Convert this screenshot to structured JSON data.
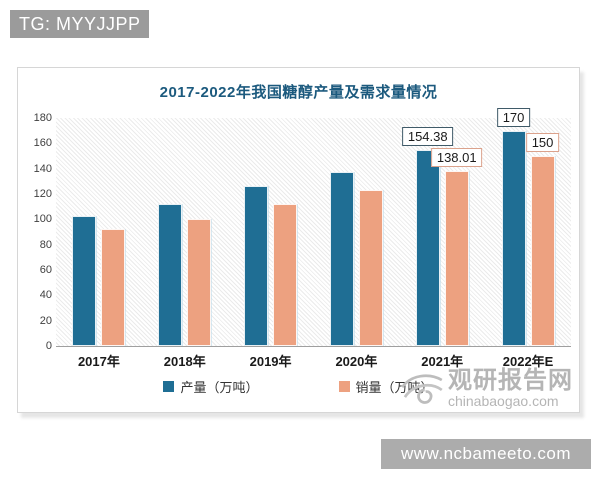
{
  "badge": {
    "text": "TG: MYYJJPP"
  },
  "watermark": {
    "site_name": "观研报告网",
    "site_url": "chinabaogao.com"
  },
  "footer": {
    "url_text": "www.ncbameeto.com"
  },
  "colors": {
    "production_bar": "#1f6e94",
    "sales_bar": "#eda180",
    "title_text": "#1c5a7e",
    "badge_background": "#9b9b9b",
    "footer_background": "#acacac",
    "watermark_gray": "#b5b5b5"
  },
  "chart_data": {
    "type": "bar",
    "title": "2017-2022年我国糖醇产量及需求量情况",
    "categories": [
      "2017年",
      "2018年",
      "2019年",
      "2020年",
      "2021年",
      "2022年E"
    ],
    "series": [
      {
        "name": "产量（万吨）",
        "color": "#1f6e94",
        "label_border": "#3f5a68",
        "values": [
          103,
          112,
          126,
          137,
          154.38,
          170
        ],
        "data_labels": [
          null,
          null,
          null,
          null,
          "154.38",
          "170"
        ]
      },
      {
        "name": "销量（万吨）",
        "color": "#eda180",
        "label_border": "#dba28c",
        "values": [
          92,
          100,
          112,
          123,
          138.01,
          150
        ],
        "data_labels": [
          null,
          null,
          null,
          null,
          "138.01",
          "150"
        ]
      }
    ],
    "xlabel": "",
    "ylabel": "",
    "ylim": [
      0,
      180
    ],
    "yticks": [
      0,
      20,
      40,
      60,
      80,
      100,
      120,
      140,
      160,
      180
    ],
    "grid": false,
    "legend_position": "bottom",
    "plot_background": "diagonal-hatch"
  }
}
